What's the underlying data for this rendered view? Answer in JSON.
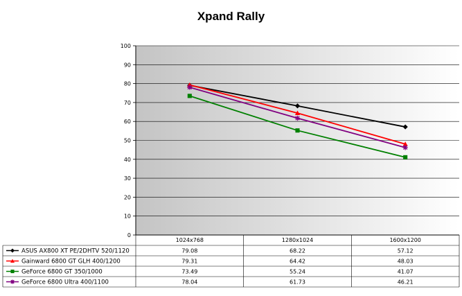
{
  "chart_data": {
    "type": "line",
    "title": "Xpand Rally",
    "categories": [
      "1024x768",
      "1280x1024",
      "1600x1200"
    ],
    "series": [
      {
        "name": "ASUS AX800 XT PE/2DHTV 520/1120",
        "values": [
          79.08,
          68.22,
          57.12
        ],
        "color": "#000000",
        "marker": "diamond"
      },
      {
        "name": "Gainward 6800 GT GLH 400/1200",
        "values": [
          79.31,
          64.42,
          48.03
        ],
        "color": "#ff0000",
        "marker": "triangle"
      },
      {
        "name": "GeForce 6800 GT 350/1000",
        "values": [
          73.49,
          55.24,
          41.07
        ],
        "color": "#008000",
        "marker": "square"
      },
      {
        "name": "GeForce 6800 Ultra 400/1100",
        "values": [
          78.04,
          61.73,
          46.21
        ],
        "color": "#800080",
        "marker": "star"
      }
    ],
    "ylim": [
      0,
      100
    ],
    "yticks": [
      0,
      10,
      20,
      30,
      40,
      50,
      60,
      70,
      80,
      90,
      100
    ],
    "grid": true,
    "legend": "data table below plot"
  }
}
